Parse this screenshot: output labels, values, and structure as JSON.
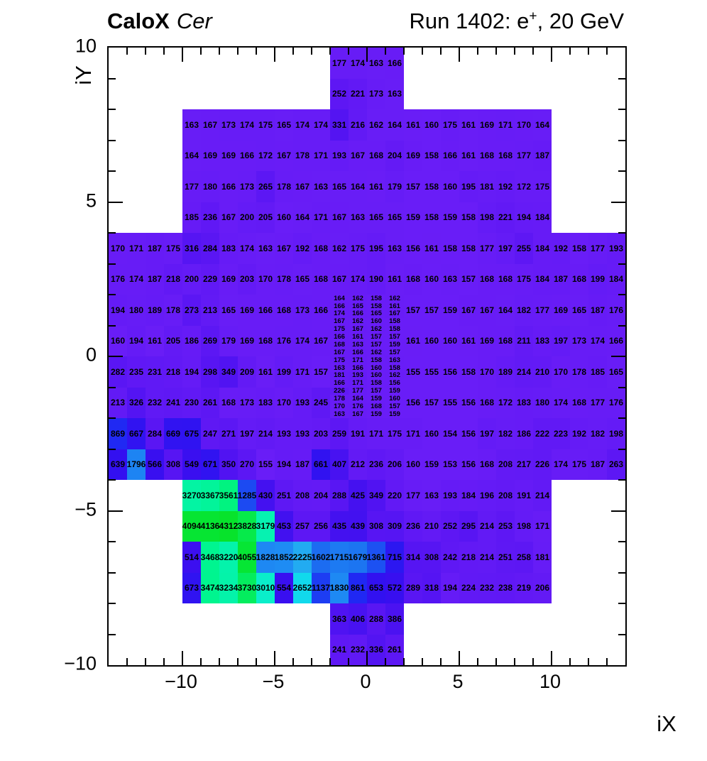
{
  "header": {
    "brand_bold": "CaloX",
    "brand_italic": "Cer",
    "run_prefix": "Run 1402: e",
    "run_sup": "+",
    "run_suffix": ", 20 GeV"
  },
  "colors": {
    "background": "#ffffff",
    "frame": "#000000",
    "cell_text": "#000000",
    "base_violet": "#6b1ef7",
    "max_green": "#07e32a",
    "palette_stops": [
      [
        140,
        "#6b1ef7"
      ],
      [
        260,
        "#5d17f4"
      ],
      [
        350,
        "#5113f2"
      ],
      [
        430,
        "#4411f0"
      ],
      [
        530,
        "#3b0ff0"
      ],
      [
        620,
        "#350ff0"
      ],
      [
        700,
        "#2e15f1"
      ],
      [
        800,
        "#2321f2"
      ],
      [
        900,
        "#1e2df3"
      ],
      [
        1160,
        "#1d3ff3"
      ],
      [
        1370,
        "#1c52f2"
      ],
      [
        1650,
        "#1c71f1"
      ],
      [
        1870,
        "#1e8ef4"
      ],
      [
        2260,
        "#22aef1"
      ],
      [
        2450,
        "#18c3ee"
      ],
      [
        2700,
        "#0fdeec"
      ],
      [
        3060,
        "#09f0c4"
      ],
      [
        3270,
        "#03f4a3"
      ],
      [
        3500,
        "#00f58d"
      ],
      [
        3660,
        "#02f06c"
      ],
      [
        3820,
        "#06ea4b"
      ],
      [
        4010,
        "#06e636"
      ],
      [
        4350,
        "#07e32a"
      ]
    ]
  },
  "chart_data": {
    "type": "heatmap",
    "title_left": "CaloX Cer",
    "title_right": "Run 1402: e+, 20 GeV",
    "xlabel": "iX",
    "ylabel": "iY",
    "xlim": [
      -14,
      14
    ],
    "ylim": [
      -10,
      10
    ],
    "x_major_ticks": [
      -10,
      -5,
      0,
      5,
      10
    ],
    "y_major_ticks": [
      -10,
      -5,
      0,
      5,
      10
    ],
    "minor_tick_step": 1,
    "grid": false,
    "legend": "none",
    "rows": [
      {
        "y_top": 10,
        "row_h": 1,
        "x0": -2,
        "values": [
          177,
          174,
          163,
          166
        ]
      },
      {
        "y_top": 9,
        "row_h": 1,
        "x0": -2,
        "values": [
          252,
          221,
          173,
          163
        ]
      },
      {
        "y_top": 8,
        "row_h": 1,
        "x0": -10,
        "values": [
          163,
          167,
          173,
          174,
          175,
          165,
          174,
          174,
          331,
          216,
          162,
          164,
          161,
          160,
          175,
          161,
          169,
          171,
          170,
          164
        ]
      },
      {
        "y_top": 7,
        "row_h": 1,
        "x0": -10,
        "values": [
          164,
          169,
          169,
          166,
          172,
          167,
          178,
          171,
          193,
          167,
          168,
          204,
          169,
          158,
          166,
          161,
          168,
          168,
          177,
          187
        ]
      },
      {
        "y_top": 6,
        "row_h": 1,
        "x0": -10,
        "values": [
          177,
          180,
          166,
          173,
          265,
          178,
          167,
          163,
          165,
          164,
          161,
          179,
          157,
          158,
          160,
          195,
          181,
          192,
          172,
          175
        ]
      },
      {
        "y_top": 5,
        "row_h": 1,
        "x0": -10,
        "values": [
          185,
          236,
          167,
          200,
          205,
          160,
          164,
          171,
          167,
          163,
          165,
          165,
          159,
          158,
          159,
          158,
          198,
          221,
          194,
          184
        ]
      },
      {
        "y_top": 4,
        "row_h": 1,
        "x0": -14,
        "values": [
          170,
          171,
          187,
          175,
          316,
          284,
          183,
          174,
          163,
          167,
          192,
          168,
          162,
          175,
          195,
          163,
          156,
          161,
          158,
          158,
          177,
          197,
          255,
          184,
          192,
          158,
          177,
          193
        ]
      },
      {
        "y_top": 3,
        "row_h": 1,
        "x0": -14,
        "values": [
          176,
          174,
          187,
          218,
          200,
          229,
          169,
          203,
          170,
          178,
          165,
          168,
          167,
          174,
          190,
          161,
          168,
          160,
          163,
          157,
          168,
          168,
          175,
          184,
          187,
          168,
          199,
          184
        ]
      },
      {
        "y_top": 2,
        "row_h": 1,
        "x0": -14,
        "values": [
          194,
          180,
          189,
          178,
          273,
          213,
          165,
          169,
          166,
          168,
          173,
          166
        ]
      },
      {
        "y_top": 2,
        "row_h": 1,
        "x0": 2,
        "values": [
          157,
          157,
          159,
          167,
          167,
          164,
          182,
          177,
          169,
          165,
          187,
          176
        ]
      },
      {
        "y_top": 1,
        "row_h": 1,
        "x0": -14,
        "values": [
          160,
          194,
          161,
          205,
          186,
          269,
          179,
          169,
          168,
          176,
          174,
          167
        ]
      },
      {
        "y_top": 1,
        "row_h": 1,
        "x0": 2,
        "values": [
          161,
          160,
          160,
          161,
          169,
          168,
          211,
          183,
          197,
          173,
          174,
          166
        ]
      },
      {
        "y_top": 0,
        "row_h": 1,
        "x0": -14,
        "values": [
          282,
          235,
          231,
          218,
          194,
          298,
          349,
          209,
          161,
          199,
          171,
          157
        ]
      },
      {
        "y_top": 0,
        "row_h": 1,
        "x0": 2,
        "values": [
          155,
          155,
          156,
          158,
          170,
          189,
          214,
          210,
          170,
          178,
          185,
          165
        ]
      },
      {
        "y_top": -1,
        "row_h": 1,
        "x0": -14,
        "values": [
          213,
          326,
          232,
          241,
          230,
          261,
          168,
          173,
          183,
          170,
          193,
          245
        ]
      },
      {
        "y_top": -1,
        "row_h": 1,
        "x0": 2,
        "values": [
          156,
          157,
          155,
          156,
          168,
          172,
          183,
          180,
          174,
          168,
          177,
          176
        ]
      },
      {
        "y_top": -2,
        "row_h": 1,
        "x0": -14,
        "values": [
          869,
          667,
          284,
          669,
          675,
          247,
          271,
          197,
          214,
          193,
          193,
          203,
          259,
          191,
          171,
          175,
          171,
          160,
          154,
          156,
          197,
          182,
          186,
          222,
          223,
          192,
          182,
          198
        ]
      },
      {
        "y_top": -3,
        "row_h": 1,
        "x0": -14,
        "values": [
          639,
          1796,
          566,
          308,
          549,
          671,
          350,
          270,
          155,
          194,
          187,
          661,
          407,
          212,
          236,
          206,
          160,
          159,
          153,
          156,
          168,
          208,
          217,
          226,
          174,
          175,
          187,
          263
        ]
      },
      {
        "y_top": -4,
        "row_h": 1,
        "x0": -10,
        "values": [
          3270,
          3367,
          3561,
          1285,
          430,
          251,
          208,
          204,
          288,
          425,
          349,
          220,
          177,
          163,
          193,
          184,
          196,
          208,
          191,
          214
        ]
      },
      {
        "y_top": -5,
        "row_h": 1,
        "x0": -10,
        "values": [
          4094,
          4136,
          4312,
          3828,
          3179,
          453,
          257,
          256,
          435,
          439,
          308,
          309,
          236,
          210,
          252,
          295,
          214,
          253,
          198,
          171
        ]
      },
      {
        "y_top": -6,
        "row_h": 1,
        "x0": -10,
        "values": [
          514,
          3468,
          3220,
          4055,
          1828,
          1852,
          2225,
          1602,
          1715,
          1679,
          1361,
          715,
          314,
          308,
          242,
          218,
          214,
          251,
          258,
          181
        ]
      },
      {
        "y_top": -7,
        "row_h": 1,
        "x0": -10,
        "values": [
          673,
          3474,
          3234,
          3730,
          3010,
          554,
          2652,
          1137,
          1830,
          861,
          653,
          572,
          289,
          318,
          194,
          224,
          232,
          238,
          219,
          206
        ]
      },
      {
        "y_top": -8,
        "row_h": 1,
        "x0": -2,
        "values": [
          363,
          406,
          288,
          386
        ]
      },
      {
        "y_top": -9,
        "row_h": 1,
        "x0": -2,
        "values": [
          241,
          232,
          336,
          261
        ]
      }
    ],
    "fine_region": {
      "x0": -2,
      "dx": 1,
      "y_top": 2,
      "row_h": 0.25,
      "rows": [
        [
          164,
          162,
          158,
          162
        ],
        [
          166,
          165,
          158,
          161
        ],
        [
          174,
          166,
          165,
          167
        ],
        [
          167,
          162,
          160,
          158
        ],
        [
          175,
          167,
          162,
          158
        ],
        [
          166,
          161,
          157,
          157
        ],
        [
          168,
          163,
          157,
          159
        ],
        [
          167,
          166,
          162,
          157
        ],
        [
          175,
          171,
          158,
          163
        ],
        [
          163,
          166,
          160,
          158
        ],
        [
          181,
          193,
          160,
          162
        ],
        [
          166,
          171,
          158,
          156
        ],
        [
          226,
          177,
          157,
          159
        ],
        [
          178,
          164,
          159,
          160
        ],
        [
          170,
          176,
          168,
          157
        ],
        [
          163,
          167,
          159,
          159
        ]
      ]
    }
  }
}
